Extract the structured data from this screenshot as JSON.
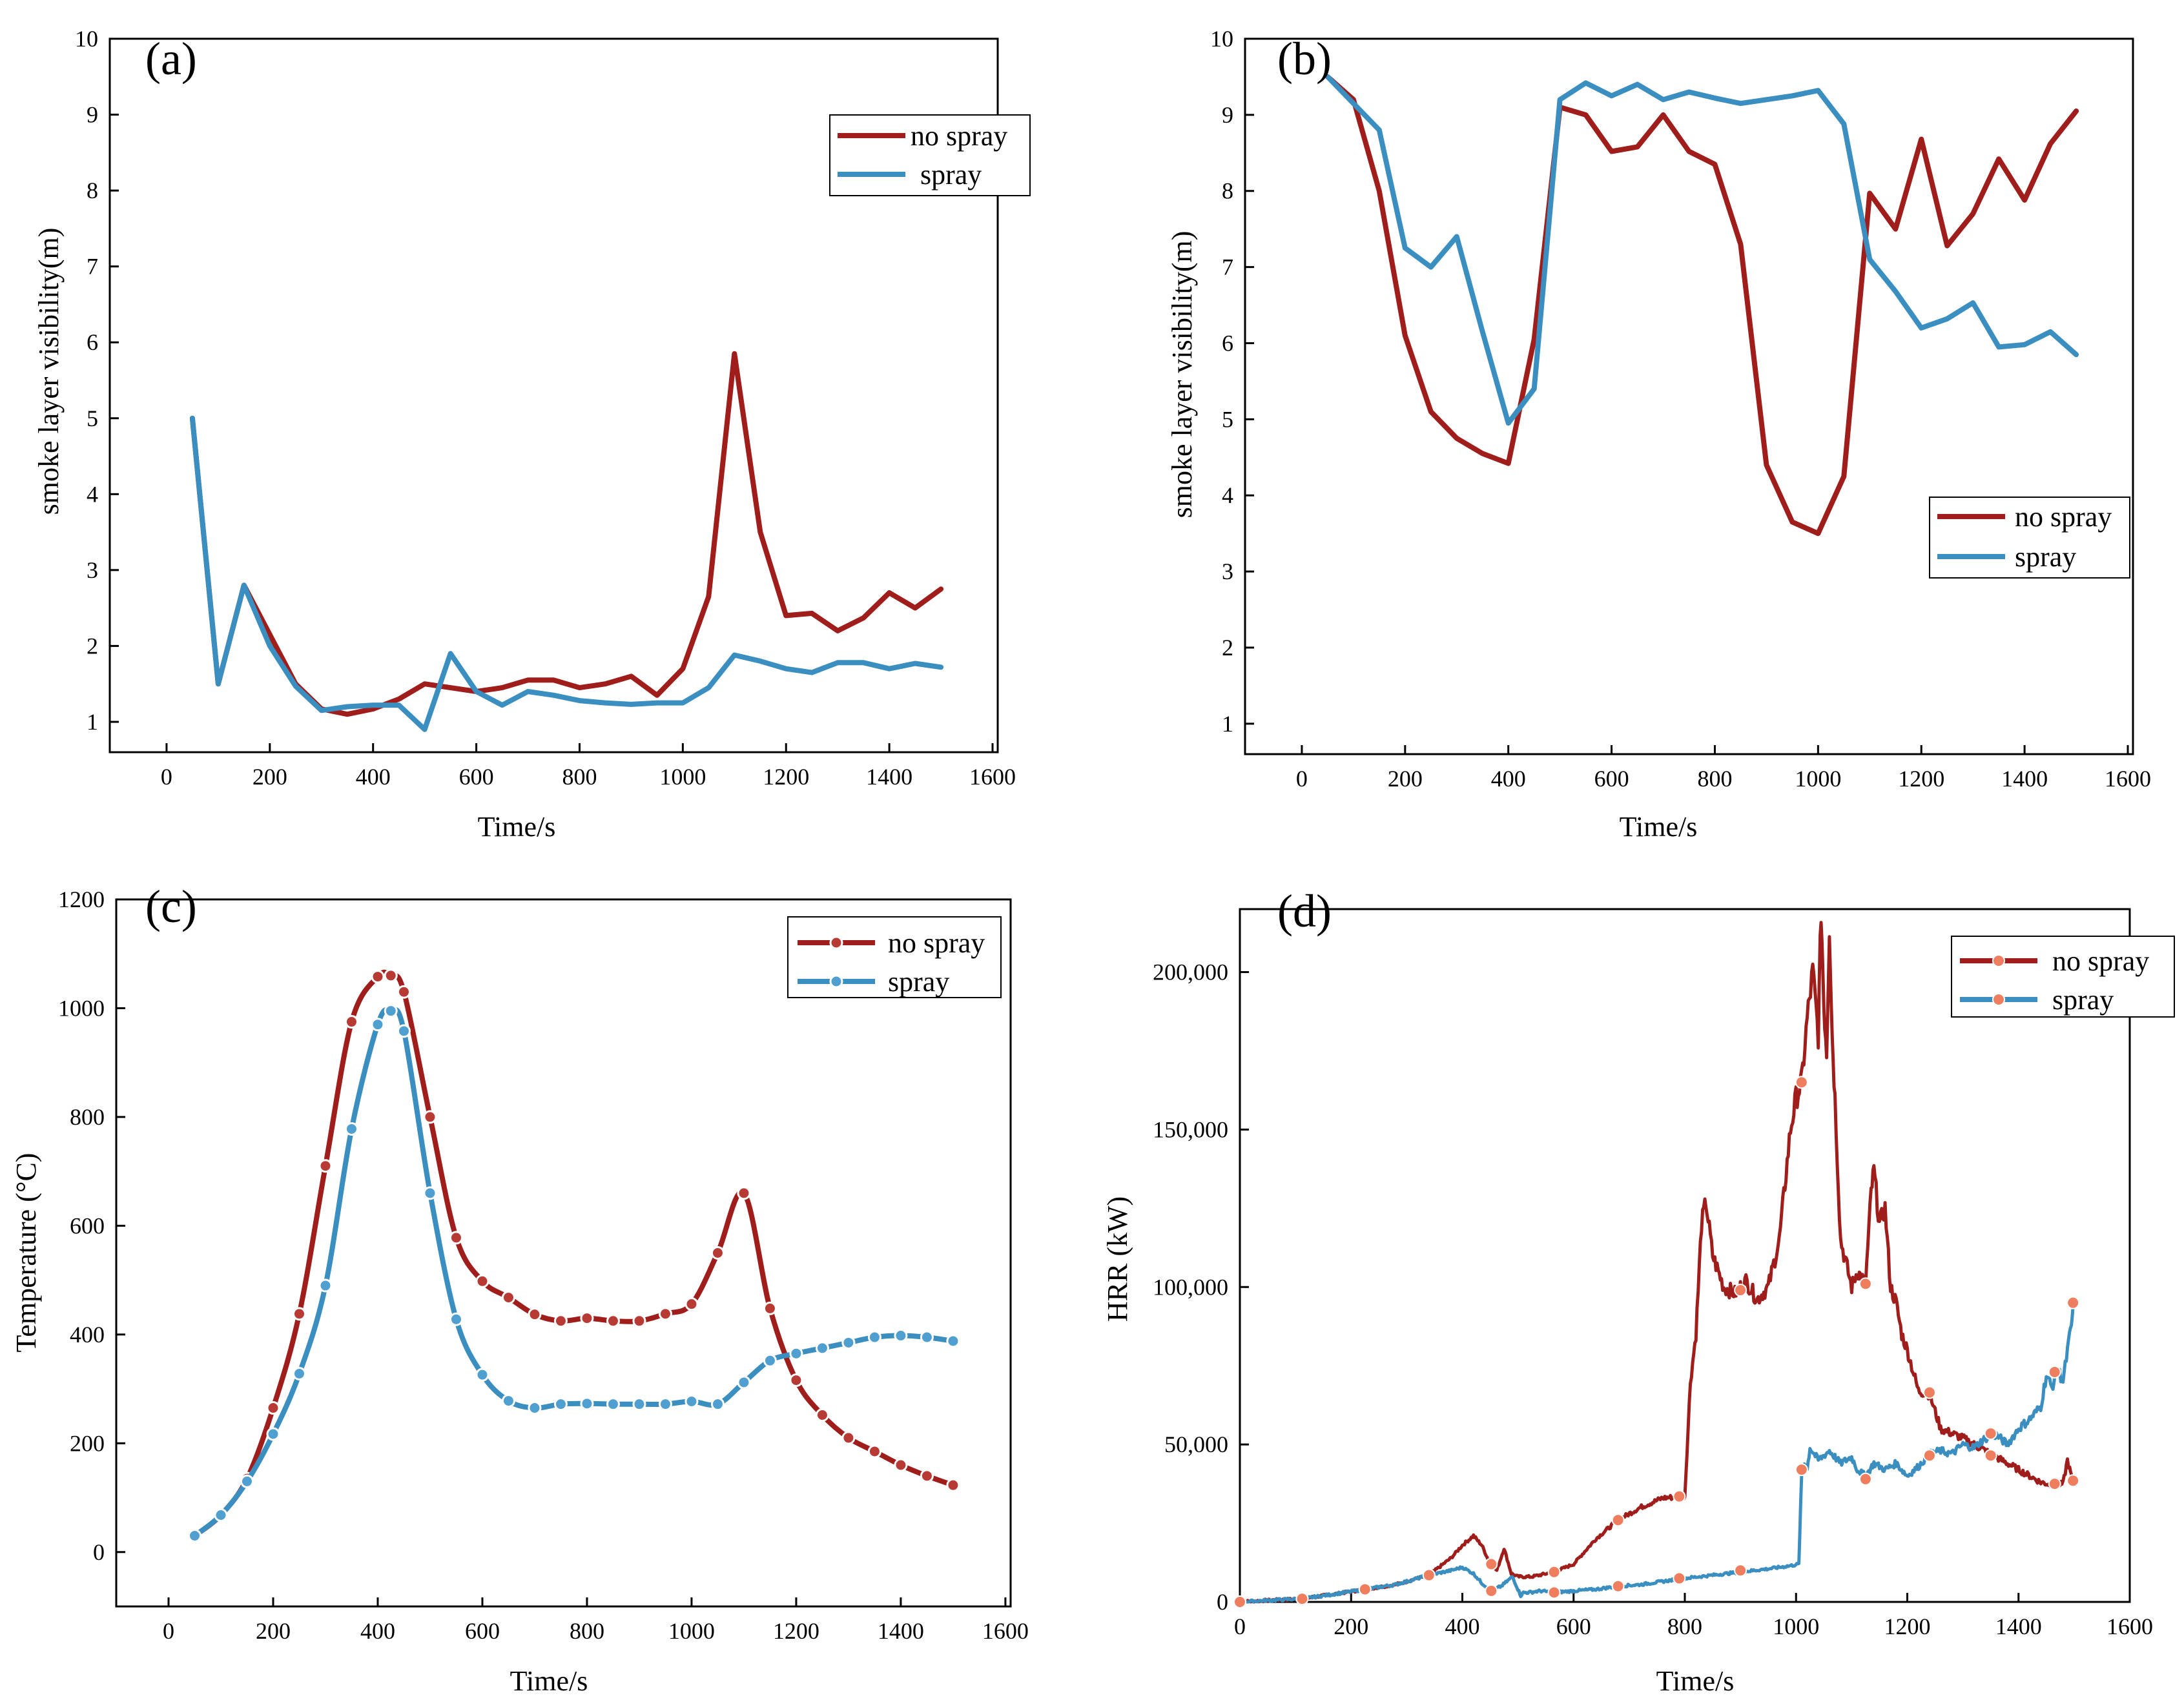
{
  "colors": {
    "no_spray": "#9f1d1a",
    "spray": "#3a8fc0",
    "marker_fill_no_spray": "#b83a34",
    "marker_fill_spray": "#4f9fd0",
    "marker_hrr": "#ef7e5f"
  },
  "chart_data": [
    {
      "type": "line",
      "panel_label": "(a)",
      "xlabel": "Time/s",
      "ylabel": "smoke layer visibility(m)",
      "xlim": [
        -110,
        1610
      ],
      "ylim": [
        0.6,
        10
      ],
      "xticks": [
        0,
        200,
        400,
        600,
        800,
        1000,
        1200,
        1400,
        1600
      ],
      "xtick_labels": [
        "0",
        "200",
        "400",
        "600",
        "800",
        "1000",
        "1200",
        "1400",
        "1600"
      ],
      "yticks": [
        1,
        2,
        3,
        4,
        5,
        6,
        7,
        8,
        9,
        10
      ],
      "ytick_labels": [
        "1",
        "2",
        "3",
        "4",
        "5",
        "6",
        "7",
        "8",
        "9",
        "10"
      ],
      "legend_position": "top-right",
      "markers": false,
      "series": [
        {
          "name": "no spray",
          "key": "no_spray",
          "x": [
            50,
            100,
            150,
            200,
            250,
            300,
            350,
            400,
            450,
            500,
            550,
            600,
            650,
            700,
            750,
            800,
            850,
            900,
            950,
            1000,
            1050,
            1100,
            1150,
            1200,
            1250,
            1300,
            1350,
            1400,
            1450,
            1500
          ],
          "y": [
            5.0,
            1.5,
            2.8,
            2.15,
            1.5,
            1.17,
            1.1,
            1.17,
            1.3,
            1.5,
            1.45,
            1.4,
            1.45,
            1.55,
            1.55,
            1.45,
            1.5,
            1.6,
            1.35,
            1.7,
            2.65,
            5.85,
            3.5,
            2.4,
            2.43,
            2.2,
            2.37,
            2.7,
            2.5,
            2.75
          ]
        },
        {
          "name": "spray",
          "key": "spray",
          "x": [
            50,
            100,
            150,
            200,
            250,
            300,
            350,
            400,
            450,
            500,
            550,
            600,
            650,
            700,
            750,
            800,
            850,
            900,
            950,
            1000,
            1050,
            1100,
            1150,
            1200,
            1250,
            1300,
            1350,
            1400,
            1450,
            1500
          ],
          "y": [
            5.0,
            1.5,
            2.8,
            2.0,
            1.47,
            1.15,
            1.2,
            1.22,
            1.22,
            0.9,
            1.9,
            1.4,
            1.22,
            1.4,
            1.35,
            1.28,
            1.25,
            1.23,
            1.25,
            1.25,
            1.45,
            1.88,
            1.8,
            1.7,
            1.65,
            1.78,
            1.78,
            1.7,
            1.77,
            1.72
          ]
        }
      ]
    },
    {
      "type": "line",
      "panel_label": "(b)",
      "xlabel": "Time/s",
      "ylabel": "smoke layer visibility(m)",
      "xlim": [
        -110,
        1610
      ],
      "ylim": [
        0.6,
        10
      ],
      "xticks": [
        0,
        200,
        400,
        600,
        800,
        1000,
        1200,
        1400,
        1600
      ],
      "xtick_labels": [
        "0",
        "200",
        "400",
        "600",
        "800",
        "1000",
        "1200",
        "1400",
        "1600"
      ],
      "yticks": [
        1,
        2,
        3,
        4,
        5,
        6,
        7,
        8,
        9,
        10
      ],
      "ytick_labels": [
        "1",
        "2",
        "3",
        "4",
        "5",
        "6",
        "7",
        "8",
        "9",
        "10"
      ],
      "legend_position": "right",
      "markers": false,
      "series": [
        {
          "name": "no spray",
          "key": "no_spray",
          "x": [
            50,
            100,
            150,
            200,
            250,
            300,
            350,
            400,
            450,
            500,
            550,
            600,
            650,
            700,
            750,
            800,
            850,
            900,
            950,
            1000,
            1050,
            1100,
            1150,
            1200,
            1250,
            1300,
            1350,
            1400,
            1450,
            1500
          ],
          "y": [
            9.5,
            9.2,
            8.0,
            6.1,
            5.1,
            4.75,
            4.55,
            4.42,
            6.05,
            9.1,
            9.0,
            8.52,
            8.58,
            9.0,
            8.52,
            8.35,
            7.3,
            4.4,
            3.65,
            3.5,
            4.25,
            7.97,
            7.5,
            8.68,
            7.28,
            7.7,
            8.42,
            7.88,
            8.62,
            9.05
          ]
        },
        {
          "name": "spray",
          "key": "spray",
          "x": [
            50,
            100,
            150,
            200,
            250,
            300,
            350,
            400,
            450,
            500,
            550,
            600,
            650,
            700,
            750,
            800,
            850,
            900,
            950,
            1000,
            1050,
            1100,
            1150,
            1200,
            1250,
            1300,
            1350,
            1400,
            1450,
            1500
          ],
          "y": [
            9.5,
            9.15,
            8.8,
            7.25,
            7.0,
            7.4,
            6.15,
            4.95,
            5.4,
            9.2,
            9.42,
            9.25,
            9.4,
            9.2,
            9.3,
            9.22,
            9.15,
            9.2,
            9.25,
            9.32,
            8.88,
            7.1,
            6.68,
            6.2,
            6.32,
            6.53,
            5.95,
            5.98,
            6.15,
            5.85
          ]
        }
      ]
    },
    {
      "type": "line",
      "panel_label": "(c)",
      "xlabel": "Time/s",
      "ylabel": "Temperature (°C)",
      "xlim": [
        -100,
        1610
      ],
      "ylim": [
        -100,
        1200
      ],
      "xticks": [
        0,
        200,
        400,
        600,
        800,
        1000,
        1200,
        1400,
        1600
      ],
      "xtick_labels": [
        "0",
        "200",
        "400",
        "600",
        "800",
        "1000",
        "1200",
        "1400",
        "1600"
      ],
      "yticks": [
        0,
        200,
        400,
        600,
        800,
        1000,
        1200
      ],
      "ytick_labels": [
        "0",
        "200",
        "400",
        "600",
        "800",
        "1000",
        "1200"
      ],
      "legend_position": "top-right",
      "markers": true,
      "series": [
        {
          "name": "no spray",
          "key": "no_spray",
          "x": [
            50,
            100,
            150,
            200,
            250,
            300,
            350,
            400,
            425,
            450,
            500,
            550,
            600,
            650,
            700,
            750,
            800,
            850,
            900,
            950,
            1000,
            1050,
            1100,
            1150,
            1200,
            1250,
            1300,
            1350,
            1400,
            1450,
            1500
          ],
          "y": [
            30,
            68,
            135,
            265,
            438,
            710,
            975,
            1058,
            1060,
            1030,
            800,
            578,
            498,
            468,
            437,
            425,
            430,
            425,
            425,
            438,
            456,
            550,
            660,
            448,
            316,
            252,
            210,
            185,
            160,
            140,
            123
          ]
        },
        {
          "name": "spray",
          "key": "spray",
          "x": [
            50,
            100,
            150,
            200,
            250,
            300,
            350,
            400,
            425,
            450,
            500,
            550,
            600,
            650,
            700,
            750,
            800,
            850,
            900,
            950,
            1000,
            1050,
            1100,
            1150,
            1200,
            1250,
            1300,
            1350,
            1400,
            1450,
            1500
          ],
          "y": [
            30,
            68,
            130,
            217,
            328,
            490,
            778,
            970,
            995,
            958,
            660,
            428,
            326,
            278,
            265,
            272,
            273,
            272,
            272,
            272,
            277,
            272,
            312,
            352,
            365,
            375,
            385,
            395,
            398,
            395,
            388
          ]
        }
      ]
    },
    {
      "type": "line",
      "panel_label": "(d)",
      "xlabel": "Time/s",
      "ylabel": "HRR (kW)",
      "xlim": [
        0,
        1600
      ],
      "ylim": [
        0,
        220000
      ],
      "xticks": [
        0,
        200,
        400,
        600,
        800,
        1000,
        1200,
        1400,
        1600
      ],
      "xtick_labels": [
        "0",
        "200",
        "400",
        "600",
        "800",
        "1000",
        "1200",
        "1400",
        "1600"
      ],
      "yticks": [
        0,
        50000,
        100000,
        150000,
        200000
      ],
      "ytick_labels": [
        "0",
        "50,000",
        "100,000",
        "150,000",
        "200,000"
      ],
      "legend_position": "top-right",
      "markers": true,
      "series": [
        {
          "name": "no spray",
          "key": "no_spray",
          "x": [
            0,
            50,
            112,
            170,
            225,
            280,
            340,
            380,
            400,
            420,
            435,
            450,
            462,
            475,
            488,
            500,
            525,
            565,
            600,
            640,
            680,
            720,
            760,
            800,
            810,
            820,
            830,
            838,
            850,
            870,
            890,
            910,
            930,
            950,
            970,
            990,
            1000,
            1010,
            1020,
            1030,
            1040,
            1045,
            1050,
            1055,
            1060,
            1065,
            1070,
            1080,
            1100,
            1110,
            1125,
            1135,
            1140,
            1150,
            1160,
            1170,
            1180,
            1190,
            1200,
            1220,
            1240,
            1260,
            1300,
            1350,
            1400,
            1440,
            1465,
            1480,
            1488,
            1492,
            1495,
            1498
          ],
          "y": [
            0,
            500,
            1000,
            2500,
            4000,
            5500,
            8500,
            14000,
            18000,
            21000,
            18000,
            12000,
            10000,
            17000,
            9000,
            8000,
            8000,
            9500,
            12000,
            20000,
            26000,
            30000,
            33000,
            33500,
            70000,
            85000,
            120000,
            127000,
            110000,
            100000,
            98000,
            102000,
            96000,
            100000,
            115000,
            150000,
            160000,
            165000,
            185000,
            200000,
            180000,
            220000,
            190000,
            175000,
            215000,
            180000,
            160000,
            115000,
            100000,
            105000,
            101000,
            130000,
            137000,
            120000,
            125000,
            100000,
            95000,
            85000,
            80000,
            67000,
            66000,
            55000,
            52000,
            47000,
            42000,
            38000,
            37000,
            37500,
            45000,
            42000,
            40000,
            38500
          ]
        },
        {
          "name": "spray",
          "key": "spray",
          "x": [
            0,
            50,
            112,
            170,
            225,
            280,
            340,
            380,
            400,
            420,
            435,
            452,
            470,
            490,
            500,
            505,
            510,
            520,
            540,
            565,
            600,
            640,
            680,
            720,
            760,
            800,
            850,
            900,
            950,
            990,
            1005,
            1010,
            1015,
            1020,
            1025,
            1040,
            1060,
            1080,
            1100,
            1110,
            1125,
            1140,
            1160,
            1180,
            1200,
            1220,
            1240,
            1260,
            1280,
            1300,
            1320,
            1340,
            1360,
            1380,
            1400,
            1420,
            1440,
            1450,
            1460,
            1470,
            1480,
            1490,
            1495,
            1500
          ],
          "y": [
            0,
            500,
            1000,
            2500,
            4000,
            5500,
            8500,
            10000,
            11000,
            9000,
            6000,
            3500,
            5000,
            8000,
            4000,
            2000,
            3000,
            3000,
            3500,
            3000,
            3500,
            4000,
            5000,
            5500,
            6500,
            7500,
            8500,
            9500,
            10500,
            11500,
            12000,
            40000,
            44000,
            42000,
            49000,
            45000,
            48000,
            44000,
            46000,
            42000,
            40000,
            44000,
            42000,
            44000,
            40000,
            43000,
            47000,
            48000,
            47000,
            50000,
            49000,
            52000,
            53000,
            50000,
            55000,
            58000,
            62000,
            72000,
            68000,
            74000,
            70000,
            82000,
            88000,
            95000
          ]
        }
      ],
      "marker_points": {
        "no_spray": {
          "x": [
            0,
            112,
            225,
            340,
            452,
            565,
            680,
            790,
            900,
            1010,
            1125,
            1240,
            1350,
            1465,
            1498
          ],
          "y": [
            0,
            1000,
            4000,
            8500,
            12000,
            9500,
            26000,
            33500,
            99000,
            165000,
            101000,
            66500,
            46500,
            37500,
            38500
          ]
        },
        "spray": {
          "x": [
            0,
            112,
            225,
            340,
            452,
            565,
            680,
            790,
            900,
            1010,
            1125,
            1240,
            1350,
            1465,
            1498
          ],
          "y": [
            0,
            1000,
            4000,
            8500,
            3500,
            3000,
            5000,
            7500,
            10000,
            42000,
            39000,
            46500,
            53500,
            73000,
            95000
          ]
        }
      }
    }
  ]
}
